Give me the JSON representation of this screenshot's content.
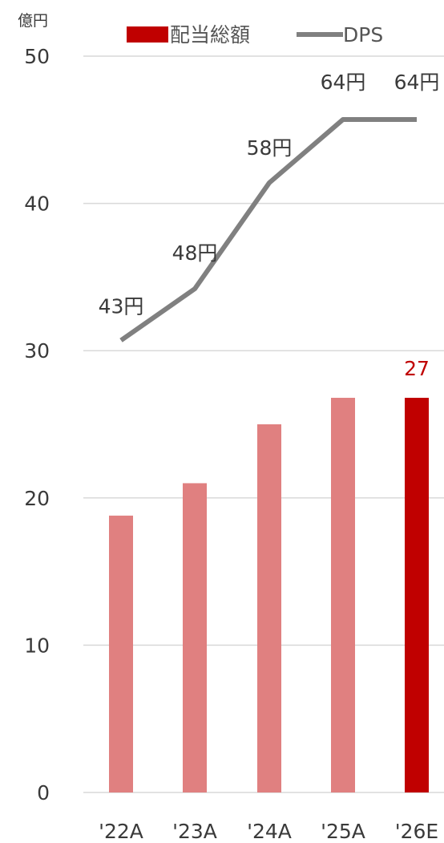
{
  "chart_data": {
    "type": "bar",
    "unit_label": "億円",
    "categories": [
      "'22A",
      "'23A",
      "'24A",
      "'25A",
      "'26E"
    ],
    "series": [
      {
        "name": "配当総額",
        "type": "bar",
        "values": [
          18.8,
          21.0,
          25.0,
          26.8,
          26.8
        ],
        "color": "#e08080",
        "highlight_color": "#c00000",
        "highlight_index": 4,
        "point_labels": [
          "",
          "",
          "",
          "",
          "27"
        ]
      },
      {
        "name": "DPS",
        "type": "line",
        "values": [
          30.7,
          34.2,
          41.4,
          45.7,
          45.7
        ],
        "color": "#808080",
        "point_labels": [
          "43円",
          "48円",
          "58円",
          "64円",
          "64円"
        ]
      }
    ],
    "ylim": [
      0,
      50
    ],
    "yticks": [
      0,
      10,
      20,
      30,
      40,
      50
    ],
    "grid": true,
    "legend_position": "top"
  }
}
